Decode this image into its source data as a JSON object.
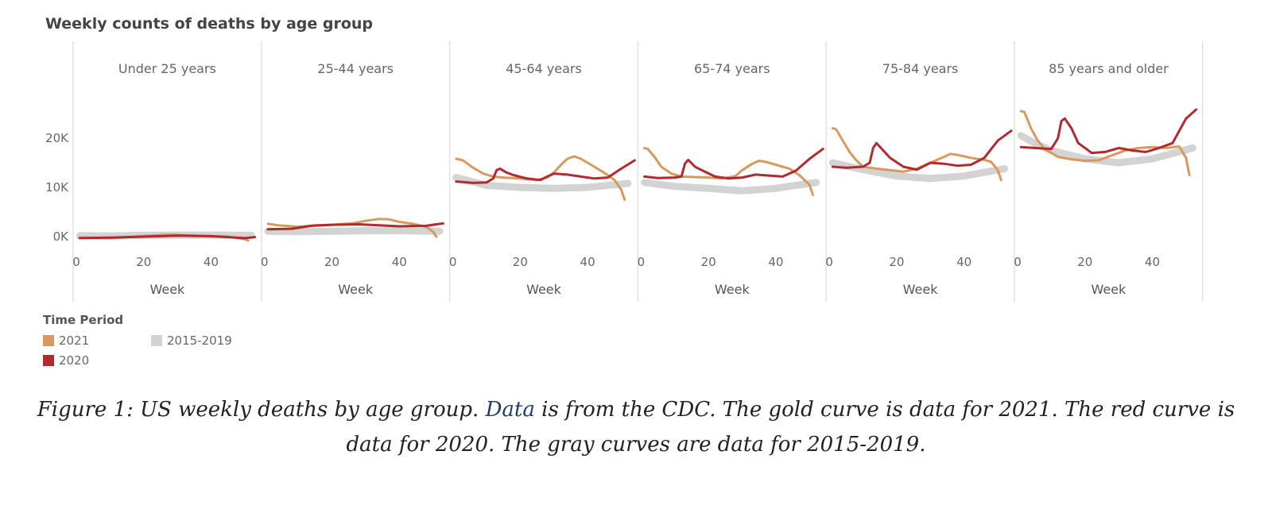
{
  "chart_data": {
    "type": "line",
    "title": "Weekly counts of deaths by age group",
    "xlabel": "Week",
    "ylabel": "",
    "ylim": [
      -3000,
      33000
    ],
    "xlim": [
      0,
      54
    ],
    "x_ticks": [
      0,
      20,
      40
    ],
    "y_ticks": [
      0,
      10000,
      20000
    ],
    "y_tick_labels": [
      "0K",
      "10K",
      "20K"
    ],
    "grid": false,
    "legend_position": "bottom-left",
    "legend_title": "Time Period",
    "colors": {
      "2021": "#d9995c",
      "2020": "#b22a2f",
      "2015-2019": "#d3d3d3"
    },
    "panels": [
      {
        "name": "Under 25 years",
        "series": [
          {
            "name": "2015-2019",
            "x": [
              1,
              10,
              20,
              30,
              40,
              52
            ],
            "y": [
              200,
              150,
              250,
              300,
              300,
              250
            ]
          },
          {
            "name": "2020",
            "x": [
              1,
              10,
              20,
              30,
              40,
              50,
              53
            ],
            "y": [
              -300,
              -200,
              0,
              200,
              100,
              -300,
              -100
            ]
          },
          {
            "name": "2021",
            "x": [
              1,
              10,
              20,
              28,
              35,
              45,
              50,
              51
            ],
            "y": [
              -200,
              -300,
              100,
              400,
              200,
              0,
              -500,
              -800
            ]
          }
        ]
      },
      {
        "name": "25-44 years",
        "series": [
          {
            "name": "2015-2019",
            "x": [
              1,
              10,
              20,
              30,
              40,
              52
            ],
            "y": [
              1100,
              1000,
              1100,
              1200,
              1200,
              1100
            ]
          },
          {
            "name": "2020",
            "x": [
              1,
              8,
              14,
              20,
              28,
              34,
              40,
              48,
              51,
              53
            ],
            "y": [
              1500,
              1600,
              2200,
              2400,
              2500,
              2300,
              2100,
              2200,
              2500,
              2700
            ]
          },
          {
            "name": "2021",
            "x": [
              1,
              4,
              10,
              15,
              20,
              26,
              30,
              34,
              37,
              40,
              44,
              48,
              50,
              51
            ],
            "y": [
              2600,
              2300,
              2000,
              2300,
              2400,
              2700,
              3200,
              3600,
              3500,
              3000,
              2600,
              2000,
              1000,
              0
            ]
          }
        ]
      },
      {
        "name": "45-64 years",
        "series": [
          {
            "name": "2015-2019",
            "x": [
              1,
              10,
              20,
              30,
              40,
              52
            ],
            "y": [
              12000,
              10400,
              10000,
              9800,
              10000,
              10800
            ]
          },
          {
            "name": "2020",
            "x": [
              1,
              6,
              10,
              12,
              13,
              14,
              16,
              18,
              22,
              26,
              28,
              30,
              34,
              38,
              42,
              46,
              50,
              54
            ],
            "y": [
              11200,
              10900,
              11000,
              11800,
              13500,
              13800,
              13000,
              12500,
              11800,
              11500,
              12200,
              12800,
              12600,
              12200,
              11800,
              12000,
              13800,
              15500
            ]
          },
          {
            "name": "2021",
            "x": [
              1,
              3,
              6,
              9,
              12,
              15,
              20,
              25,
              28,
              30,
              32,
              34,
              36,
              38,
              42,
              46,
              48,
              50,
              51
            ],
            "y": [
              15800,
              15500,
              14000,
              12800,
              12200,
              12000,
              11800,
              11500,
              12000,
              13000,
              14500,
              15800,
              16300,
              15800,
              14200,
              12500,
              11500,
              9500,
              7500
            ]
          }
        ]
      },
      {
        "name": "65-74 years",
        "series": [
          {
            "name": "2015-2019",
            "x": [
              1,
              10,
              20,
              30,
              40,
              52
            ],
            "y": [
              11000,
              10200,
              9800,
              9300,
              9800,
              11000
            ]
          },
          {
            "name": "2020",
            "x": [
              1,
              5,
              10,
              12,
              13,
              14,
              16,
              18,
              22,
              26,
              30,
              34,
              38,
              42,
              46,
              50,
              54
            ],
            "y": [
              12200,
              11900,
              12000,
              12200,
              14800,
              15600,
              14200,
              13500,
              12200,
              11800,
              12000,
              12600,
              12400,
              12200,
              13400,
              15800,
              17800
            ]
          },
          {
            "name": "2021",
            "x": [
              1,
              2,
              4,
              6,
              9,
              12,
              16,
              20,
              24,
              28,
              30,
              33,
              35,
              37,
              40,
              44,
              47,
              50,
              51
            ],
            "y": [
              18000,
              17800,
              16200,
              14200,
              12800,
              12200,
              12100,
              12000,
              11800,
              12300,
              13500,
              14800,
              15400,
              15200,
              14600,
              13800,
              12500,
              10500,
              8500
            ]
          }
        ]
      },
      {
        "name": "75-84 years",
        "series": [
          {
            "name": "2015-2019",
            "x": [
              1,
              10,
              20,
              30,
              40,
              52
            ],
            "y": [
              15000,
              13600,
              12300,
              11800,
              12300,
              13800
            ]
          },
          {
            "name": "2020",
            "x": [
              1,
              5,
              10,
              12,
              13,
              14,
              16,
              18,
              22,
              26,
              30,
              34,
              38,
              42,
              46,
              50,
              54
            ],
            "y": [
              14200,
              14000,
              14200,
              15000,
              18000,
              19000,
              17500,
              16000,
              14200,
              13600,
              15000,
              14800,
              14400,
              14600,
              16000,
              19500,
              21500
            ]
          },
          {
            "name": "2021",
            "x": [
              1,
              2,
              4,
              6,
              8,
              10,
              14,
              18,
              22,
              26,
              30,
              34,
              36,
              38,
              42,
              46,
              48,
              50,
              51
            ],
            "y": [
              22000,
              21800,
              19500,
              17200,
              15500,
              14200,
              13800,
              13500,
              13200,
              13800,
              15000,
              16200,
              16800,
              16600,
              16000,
              15600,
              15200,
              13500,
              11500
            ]
          }
        ]
      },
      {
        "name": "85 years and older",
        "series": [
          {
            "name": "2015-2019",
            "x": [
              1,
              5,
              10,
              20,
              30,
              40,
              52
            ],
            "y": [
              20500,
              19000,
              17500,
              15800,
              15000,
              15800,
              18000
            ]
          },
          {
            "name": "2020",
            "x": [
              1,
              5,
              10,
              12,
              13,
              14,
              16,
              18,
              22,
              26,
              30,
              34,
              38,
              42,
              46,
              50,
              53
            ],
            "y": [
              18200,
              18000,
              17800,
              20000,
              23500,
              24000,
              22000,
              19000,
              17000,
              17200,
              18000,
              17500,
              17200,
              18000,
              19000,
              24000,
              25800
            ]
          },
          {
            "name": "2021",
            "x": [
              1,
              2,
              4,
              6,
              8,
              10,
              12,
              16,
              20,
              24,
              28,
              32,
              36,
              40,
              44,
              48,
              50,
              51
            ],
            "y": [
              25500,
              25300,
              22000,
              19500,
              17800,
              17000,
              16200,
              15700,
              15400,
              15500,
              16500,
              17500,
              18000,
              18200,
              18000,
              18300,
              16000,
              12500
            ]
          }
        ]
      }
    ]
  },
  "legend": {
    "title": "Time Period",
    "items": [
      {
        "label": "2021",
        "color": "#d9995c"
      },
      {
        "label": "2015-2019",
        "color": "#d3d3d3"
      },
      {
        "label": "2020",
        "color": "#b22a2f"
      }
    ]
  },
  "caption": {
    "part1": "Figure 1: US weekly deaths by age group. ",
    "link": "Data",
    "part2": " is from the CDC. The gold curve is data for 2021. The red curve is data for 2020. The gray curves are data for 2015-2019."
  }
}
